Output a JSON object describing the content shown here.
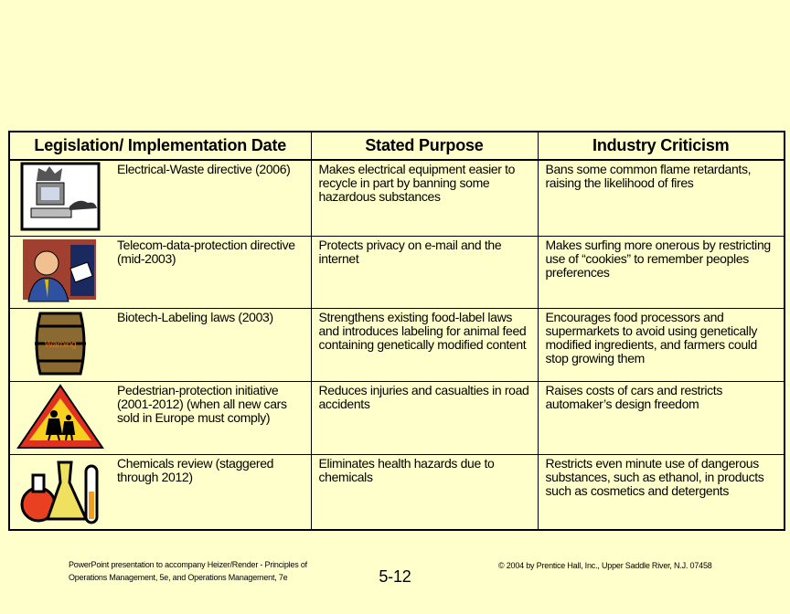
{
  "table": {
    "header": [
      "Legislation/ Implementation Date",
      "Stated Purpose",
      "Industry Criticism"
    ],
    "rows": [
      {
        "cells": [
          "Electrical-Waste directive (2006)",
          "Makes electrical equipment easier to recycle in part by banning some hazardous substances",
          "Bans some common flame retardants, raising the likelihood of fires"
        ]
      },
      {
        "cells": [
          "Telecom-data-protection directive (mid-2003)",
          "Protects privacy on e-mail and the internet",
          "Makes surfing more onerous by restricting use of “cookies” to remember peoples preferences"
        ]
      },
      {
        "cells": [
          "Biotech-Labeling laws (2003)",
          "Strengthens existing food-label laws and introduces labeling for animal feed containing genetically modified content",
          "Encourages food processors and supermarkets to avoid using genetically modified ingredients, and farmers could stop growing them"
        ],
        "icon_text": "Warning"
      },
      {
        "cells": [
          "Pedestrian-protection initiative (2001-2012) (when all new cars sold in Europe must comply)",
          "Reduces injuries and casualties in road accidents",
          "Raises costs of cars and restricts automaker’s design freedom"
        ]
      },
      {
        "cells": [
          "Chemicals review (staggered through 2012)",
          "Eliminates health hazards due to chemicals",
          "Restricts even minute use of dangerous substances, such as ethanol, in products such as cosmetics and detergents"
        ]
      }
    ]
  },
  "footer": {
    "left": "PowerPoint presentation to accompany Heizer/Render - Principles of Operations Management, 5e, and Operations Management, 7e",
    "page": "5-12",
    "right": "© 2004 by Prentice Hall, Inc., Upper Saddle River, N.J. 07458"
  }
}
